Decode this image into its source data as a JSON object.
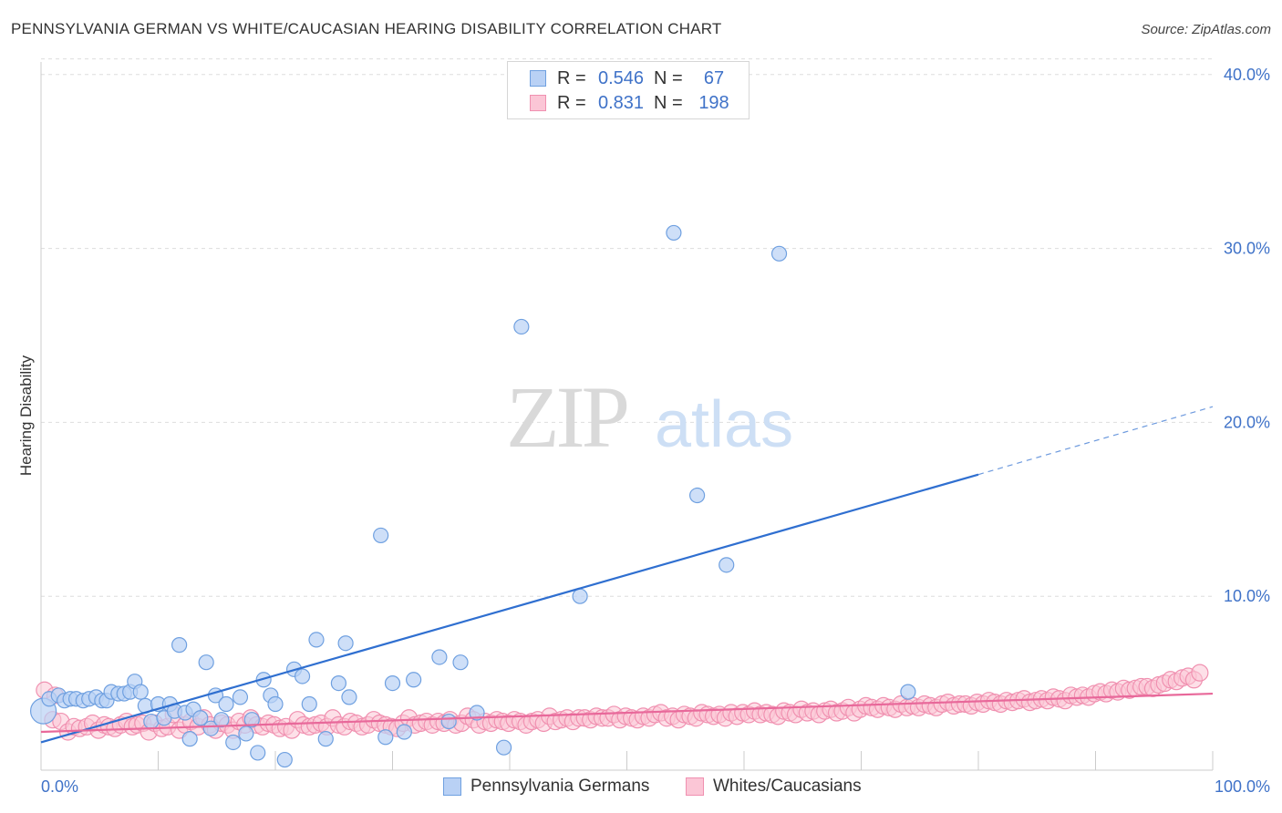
{
  "header": {
    "title": "PENNSYLVANIA GERMAN VS WHITE/CAUCASIAN HEARING DISABILITY CORRELATION CHART",
    "source": "Source: ZipAtlas.com"
  },
  "watermark": {
    "zip": "ZIP",
    "atlas": "atlas"
  },
  "legend": {
    "rows": [
      {
        "r_label": "R =",
        "r_value": "0.546",
        "n_label": "N =",
        "n_value": "67",
        "color": "#6fa0e0"
      },
      {
        "r_label": "R =",
        "r_value": "0.831",
        "n_label": "N =",
        "n_value": "198",
        "color": "#f090b0"
      }
    ]
  },
  "colors": {
    "blue_fill": "#b9d1f5",
    "blue_stroke": "#6fa0e0",
    "blue_line": "#2f6fd0",
    "pink_fill": "#fbc6d6",
    "pink_stroke": "#f090b0",
    "pink_line": "#e8689a",
    "tick_label": "#3f72c8",
    "grid": "#dddddd"
  },
  "chart_data": {
    "type": "scatter",
    "title": "PENNSYLVANIA GERMAN VS WHITE/CAUCASIAN HEARING DISABILITY CORRELATION CHART",
    "xlabel": "",
    "ylabel": "Hearing Disability",
    "xlim": [
      0,
      100
    ],
    "ylim": [
      0,
      42
    ],
    "x_ticks": [
      "0.0%",
      "100.0%"
    ],
    "y_ticks": [
      {
        "value": 10,
        "label": "10.0%"
      },
      {
        "value": 20,
        "label": "20.0%"
      },
      {
        "value": 30,
        "label": "30.0%"
      },
      {
        "value": 40,
        "label": "40.0%"
      }
    ],
    "grid": "horizontal dashed",
    "legend_position": "top-center and bottom",
    "series": [
      {
        "name": "Pennsylvania Germans",
        "color": "#6fa0e0",
        "r": 0.546,
        "n": 67,
        "trend": {
          "x": [
            0,
            80
          ],
          "y": [
            1.6,
            17.0
          ],
          "dashed_extension_to": [
            100,
            20.9
          ]
        },
        "points": [
          [
            0.2,
            3.4
          ],
          [
            0.7,
            4.1
          ],
          [
            1.5,
            4.3
          ],
          [
            2.0,
            4.0
          ],
          [
            2.5,
            4.1
          ],
          [
            3.0,
            4.1
          ],
          [
            3.6,
            4.0
          ],
          [
            4.1,
            4.1
          ],
          [
            4.7,
            4.2
          ],
          [
            5.2,
            4.0
          ],
          [
            5.6,
            4.0
          ],
          [
            6.0,
            4.5
          ],
          [
            6.6,
            4.4
          ],
          [
            7.1,
            4.4
          ],
          [
            7.6,
            4.5
          ],
          [
            8.0,
            5.1
          ],
          [
            8.5,
            4.5
          ],
          [
            8.9,
            3.7
          ],
          [
            9.4,
            2.8
          ],
          [
            10.0,
            3.8
          ],
          [
            10.5,
            3.0
          ],
          [
            11.0,
            3.8
          ],
          [
            11.4,
            3.4
          ],
          [
            11.8,
            7.2
          ],
          [
            12.3,
            3.3
          ],
          [
            12.7,
            1.8
          ],
          [
            13.0,
            3.5
          ],
          [
            13.6,
            3.0
          ],
          [
            14.1,
            6.2
          ],
          [
            14.5,
            2.4
          ],
          [
            14.9,
            4.3
          ],
          [
            15.4,
            2.9
          ],
          [
            15.8,
            3.8
          ],
          [
            16.4,
            1.6
          ],
          [
            17.0,
            4.2
          ],
          [
            17.5,
            2.1
          ],
          [
            18.0,
            2.9
          ],
          [
            18.5,
            1.0
          ],
          [
            19.0,
            5.2
          ],
          [
            19.6,
            4.3
          ],
          [
            20.0,
            3.8
          ],
          [
            20.8,
            0.6
          ],
          [
            21.6,
            5.8
          ],
          [
            22.3,
            5.4
          ],
          [
            22.9,
            3.8
          ],
          [
            23.5,
            7.5
          ],
          [
            24.3,
            1.8
          ],
          [
            25.4,
            5.0
          ],
          [
            26.0,
            7.3
          ],
          [
            26.3,
            4.2
          ],
          [
            29.0,
            13.5
          ],
          [
            29.4,
            1.9
          ],
          [
            30.0,
            5.0
          ],
          [
            31.0,
            2.2
          ],
          [
            31.8,
            5.2
          ],
          [
            34.0,
            6.5
          ],
          [
            34.8,
            2.8
          ],
          [
            35.8,
            6.2
          ],
          [
            37.2,
            3.3
          ],
          [
            39.5,
            1.3
          ],
          [
            41.0,
            25.5
          ],
          [
            46.0,
            10.0
          ],
          [
            54.0,
            30.9
          ],
          [
            56.0,
            15.8
          ],
          [
            58.5,
            11.8
          ],
          [
            63.0,
            29.7
          ],
          [
            74.0,
            4.5
          ]
        ]
      },
      {
        "name": "Whites/Caucasians",
        "color": "#f090b0",
        "r": 0.831,
        "n": 198,
        "trend": {
          "x": [
            0,
            100
          ],
          "y": [
            2.2,
            4.4
          ]
        },
        "points": [
          [
            0.3,
            4.6
          ],
          [
            1.0,
            2.9
          ],
          [
            1.2,
            4.3
          ],
          [
            1.7,
            2.8
          ],
          [
            2.3,
            2.2
          ],
          [
            2.8,
            2.5
          ],
          [
            3.3,
            2.4
          ],
          [
            3.9,
            2.5
          ],
          [
            4.4,
            2.7
          ],
          [
            4.9,
            2.3
          ],
          [
            5.4,
            2.6
          ],
          [
            5.8,
            2.5
          ],
          [
            6.3,
            2.4
          ],
          [
            6.8,
            2.6
          ],
          [
            7.3,
            2.8
          ],
          [
            7.8,
            2.5
          ],
          [
            8.2,
            2.6
          ],
          [
            8.7,
            2.7
          ],
          [
            9.2,
            2.2
          ],
          [
            9.7,
            2.7
          ],
          [
            10.3,
            2.4
          ],
          [
            10.8,
            2.5
          ],
          [
            11.3,
            3.2
          ],
          [
            11.8,
            2.3
          ],
          [
            12.3,
            2.6
          ],
          [
            12.8,
            2.8
          ],
          [
            13.4,
            2.5
          ],
          [
            13.9,
            3.0
          ],
          [
            14.4,
            2.6
          ],
          [
            14.9,
            2.3
          ],
          [
            15.4,
            2.7
          ],
          [
            15.9,
            2.6
          ],
          [
            16.4,
            2.3
          ],
          [
            16.9,
            2.8
          ],
          [
            17.4,
            2.6
          ],
          [
            17.9,
            3.0
          ],
          [
            18.4,
            2.6
          ],
          [
            18.9,
            2.5
          ],
          [
            19.4,
            2.7
          ],
          [
            19.9,
            2.6
          ],
          [
            20.4,
            2.4
          ],
          [
            20.9,
            2.5
          ],
          [
            21.4,
            2.3
          ],
          [
            21.9,
            2.9
          ],
          [
            22.4,
            2.6
          ],
          [
            22.9,
            2.5
          ],
          [
            23.4,
            2.6
          ],
          [
            23.9,
            2.7
          ],
          [
            24.4,
            2.5
          ],
          [
            24.9,
            3.0
          ],
          [
            25.4,
            2.6
          ],
          [
            25.9,
            2.5
          ],
          [
            26.4,
            2.8
          ],
          [
            26.9,
            2.7
          ],
          [
            27.4,
            2.5
          ],
          [
            27.9,
            2.6
          ],
          [
            28.4,
            2.9
          ],
          [
            28.9,
            2.7
          ],
          [
            29.4,
            2.6
          ],
          [
            29.9,
            2.5
          ],
          [
            30.4,
            2.4
          ],
          [
            30.9,
            2.7
          ],
          [
            31.4,
            3.0
          ],
          [
            31.9,
            2.6
          ],
          [
            32.4,
            2.7
          ],
          [
            32.9,
            2.8
          ],
          [
            33.4,
            2.6
          ],
          [
            33.9,
            2.8
          ],
          [
            34.4,
            2.7
          ],
          [
            34.9,
            2.9
          ],
          [
            35.4,
            2.6
          ],
          [
            35.9,
            2.7
          ],
          [
            36.4,
            3.1
          ],
          [
            36.9,
            2.9
          ],
          [
            37.4,
            2.6
          ],
          [
            37.9,
            2.8
          ],
          [
            38.4,
            2.7
          ],
          [
            38.9,
            2.9
          ],
          [
            39.4,
            2.8
          ],
          [
            39.9,
            2.7
          ],
          [
            40.4,
            2.9
          ],
          [
            40.9,
            2.8
          ],
          [
            41.4,
            2.6
          ],
          [
            41.9,
            2.8
          ],
          [
            42.4,
            2.9
          ],
          [
            42.9,
            2.7
          ],
          [
            43.4,
            3.1
          ],
          [
            43.9,
            2.8
          ],
          [
            44.4,
            2.9
          ],
          [
            44.9,
            3.0
          ],
          [
            45.4,
            2.8
          ],
          [
            45.9,
            3.0
          ],
          [
            46.4,
            3.0
          ],
          [
            46.9,
            2.9
          ],
          [
            47.4,
            3.1
          ],
          [
            47.9,
            3.0
          ],
          [
            48.4,
            3.0
          ],
          [
            48.9,
            3.2
          ],
          [
            49.4,
            2.9
          ],
          [
            49.9,
            3.1
          ],
          [
            50.4,
            3.0
          ],
          [
            50.9,
            2.9
          ],
          [
            51.4,
            3.1
          ],
          [
            51.9,
            3.0
          ],
          [
            52.4,
            3.2
          ],
          [
            52.9,
            3.3
          ],
          [
            53.4,
            3.0
          ],
          [
            53.9,
            3.1
          ],
          [
            54.4,
            2.9
          ],
          [
            54.9,
            3.2
          ],
          [
            55.4,
            3.1
          ],
          [
            55.9,
            3.0
          ],
          [
            56.4,
            3.3
          ],
          [
            56.9,
            3.2
          ],
          [
            57.4,
            3.1
          ],
          [
            57.9,
            3.2
          ],
          [
            58.4,
            3.0
          ],
          [
            58.9,
            3.3
          ],
          [
            59.4,
            3.1
          ],
          [
            59.9,
            3.3
          ],
          [
            60.4,
            3.2
          ],
          [
            60.9,
            3.4
          ],
          [
            61.4,
            3.2
          ],
          [
            61.9,
            3.3
          ],
          [
            62.4,
            3.2
          ],
          [
            62.9,
            3.1
          ],
          [
            63.4,
            3.4
          ],
          [
            63.9,
            3.3
          ],
          [
            64.4,
            3.2
          ],
          [
            64.9,
            3.5
          ],
          [
            65.4,
            3.3
          ],
          [
            65.9,
            3.4
          ],
          [
            66.4,
            3.2
          ],
          [
            66.9,
            3.4
          ],
          [
            67.4,
            3.5
          ],
          [
            67.9,
            3.3
          ],
          [
            68.4,
            3.4
          ],
          [
            68.9,
            3.6
          ],
          [
            69.4,
            3.3
          ],
          [
            69.9,
            3.5
          ],
          [
            70.4,
            3.7
          ],
          [
            70.9,
            3.6
          ],
          [
            71.4,
            3.5
          ],
          [
            71.9,
            3.7
          ],
          [
            72.4,
            3.6
          ],
          [
            72.9,
            3.5
          ],
          [
            73.4,
            3.8
          ],
          [
            73.9,
            3.6
          ],
          [
            74.4,
            3.7
          ],
          [
            74.9,
            3.6
          ],
          [
            75.4,
            3.8
          ],
          [
            75.9,
            3.7
          ],
          [
            76.4,
            3.6
          ],
          [
            76.9,
            3.8
          ],
          [
            77.4,
            3.9
          ],
          [
            77.9,
            3.7
          ],
          [
            78.4,
            3.8
          ],
          [
            78.9,
            3.8
          ],
          [
            79.4,
            3.7
          ],
          [
            79.9,
            3.9
          ],
          [
            80.4,
            3.8
          ],
          [
            80.9,
            4.0
          ],
          [
            81.4,
            3.9
          ],
          [
            81.9,
            3.8
          ],
          [
            82.4,
            4.0
          ],
          [
            82.9,
            3.9
          ],
          [
            83.4,
            4.0
          ],
          [
            83.9,
            4.1
          ],
          [
            84.4,
            3.9
          ],
          [
            84.9,
            4.0
          ],
          [
            85.4,
            4.1
          ],
          [
            85.9,
            4.0
          ],
          [
            86.4,
            4.2
          ],
          [
            86.9,
            4.1
          ],
          [
            87.4,
            4.0
          ],
          [
            87.9,
            4.3
          ],
          [
            88.4,
            4.2
          ],
          [
            88.9,
            4.3
          ],
          [
            89.4,
            4.2
          ],
          [
            89.9,
            4.4
          ],
          [
            90.4,
            4.5
          ],
          [
            90.9,
            4.4
          ],
          [
            91.4,
            4.6
          ],
          [
            91.9,
            4.5
          ],
          [
            92.4,
            4.7
          ],
          [
            92.9,
            4.6
          ],
          [
            93.4,
            4.7
          ],
          [
            93.9,
            4.8
          ],
          [
            94.4,
            4.8
          ],
          [
            94.9,
            4.7
          ],
          [
            95.4,
            4.9
          ],
          [
            95.9,
            5.0
          ],
          [
            96.4,
            5.2
          ],
          [
            96.9,
            5.1
          ],
          [
            97.4,
            5.3
          ],
          [
            97.9,
            5.4
          ],
          [
            98.4,
            5.2
          ],
          [
            98.9,
            5.6
          ]
        ]
      }
    ]
  }
}
